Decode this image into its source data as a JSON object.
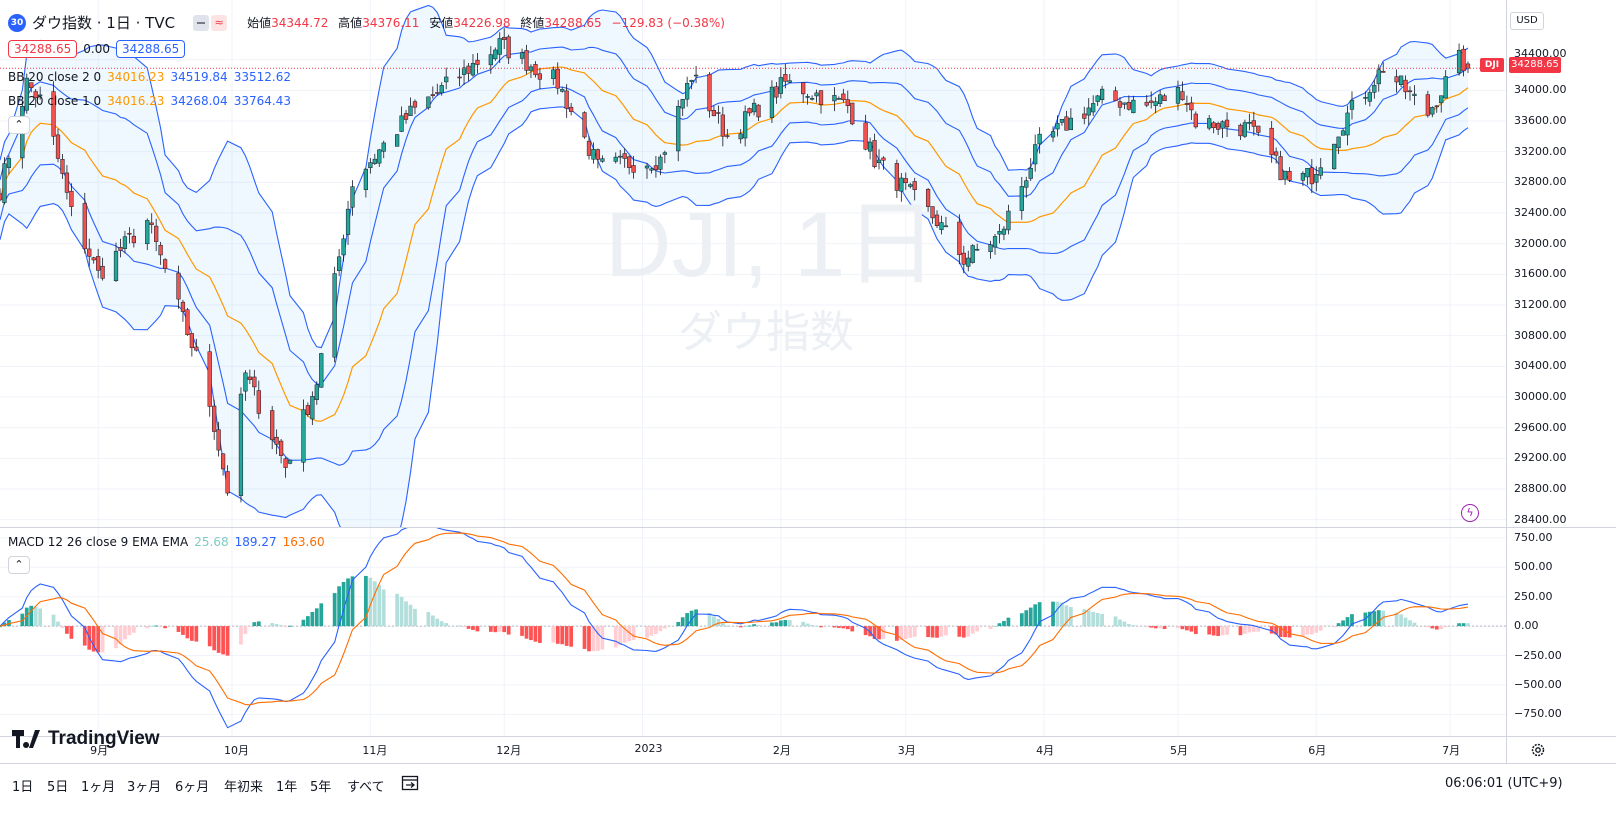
{
  "header": {
    "symbol_badge": "30",
    "title": "ダウ指数 · 1日 · TVC",
    "ohlc": [
      {
        "label": "始値",
        "value": "34344.72"
      },
      {
        "label": "高値",
        "value": "34376.11"
      },
      {
        "label": "安値",
        "value": "34226.98"
      },
      {
        "label": "終値",
        "value": "34288.65"
      }
    ],
    "change": "−129.83 (−0.38%)"
  },
  "trade": {
    "sell_price": "34288.65",
    "spread": "0.00",
    "buy_price": "34288.65"
  },
  "indicators": {
    "bb2": {
      "label": "BB 20 close 2 0",
      "basis": "34016.23",
      "upper": "34519.84",
      "lower": "33512.62"
    },
    "bb1": {
      "label": "BB 20 close 1 0",
      "basis": "34016.23",
      "upper": "34268.04",
      "lower": "33764.43"
    },
    "macd": {
      "label": "MACD 12 26 close 9 EMA EMA",
      "hist": "25.68",
      "macd": "189.27",
      "signal": "163.60"
    }
  },
  "watermark": {
    "main": "DJI, 1日",
    "sub": "ダウ指数"
  },
  "price_axis": {
    "currency": "USD",
    "ticks": [
      34400,
      34000,
      33600,
      33200,
      32800,
      32400,
      32000,
      31600,
      31200,
      30800,
      30400,
      30000,
      29600,
      29200,
      28800,
      28400
    ],
    "last_symbol": "DJI",
    "last_price": "34288.65"
  },
  "macd_axis": {
    "ticks": [
      "750.00",
      "500.00",
      "250.00",
      "0.00",
      "−250.00",
      "−500.00",
      "−750.00"
    ]
  },
  "time_axis": {
    "labels": [
      "9月",
      "10月",
      "11月",
      "12月",
      "2023",
      "2月",
      "3月",
      "4月",
      "5月",
      "6月",
      "7月"
    ]
  },
  "timeframes": [
    "1日",
    "5日",
    "1ヶ月",
    "3ヶ月",
    "6ヶ月",
    "年初来",
    "1年",
    "5年",
    "すべて"
  ],
  "clock": "06:06:01 (UTC+9)",
  "logo_text": "TradingView",
  "colors": {
    "up": "#26a69a",
    "up_body": "#4caf7d",
    "down": "#ef5350",
    "basis": "#ff9800",
    "band": "#2962ff",
    "macd_line": "#2962ff",
    "signal_line": "#ff6d00",
    "hist_up_strong": "#26a69a",
    "hist_up_weak": "#b2dfdb",
    "hist_down_strong": "#ff5252",
    "hist_down_weak": "#ffcdd2"
  },
  "chart_data": {
    "type": "candlestick",
    "x_range": [
      "2022-08-10",
      "2023-07-05"
    ],
    "ylim": [
      28200,
      34800
    ],
    "macd_ylim": [
      -900,
      800
    ],
    "anchors": [
      {
        "date": "2022-08-10",
        "close": 32700
      },
      {
        "date": "2022-08-16",
        "close": 34100
      },
      {
        "date": "2022-08-20",
        "close": 33800
      },
      {
        "date": "2022-08-26",
        "close": 32400
      },
      {
        "date": "2022-09-01",
        "close": 31600
      },
      {
        "date": "2022-09-12",
        "close": 32300
      },
      {
        "date": "2022-09-25",
        "close": 30200
      },
      {
        "date": "2022-09-30",
        "close": 28800
      },
      {
        "date": "2022-10-04",
        "close": 30300
      },
      {
        "date": "2022-10-13",
        "close": 29100
      },
      {
        "date": "2022-10-20",
        "close": 30200
      },
      {
        "date": "2022-10-28",
        "close": 32800
      },
      {
        "date": "2022-11-10",
        "close": 33700
      },
      {
        "date": "2022-11-30",
        "close": 34600
      },
      {
        "date": "2022-12-13",
        "close": 34100
      },
      {
        "date": "2022-12-22",
        "close": 33000
      },
      {
        "date": "2023-01-05",
        "close": 33100
      },
      {
        "date": "2023-01-12",
        "close": 34200
      },
      {
        "date": "2023-01-20",
        "close": 33400
      },
      {
        "date": "2023-02-02",
        "close": 34100
      },
      {
        "date": "2023-02-16",
        "close": 33800
      },
      {
        "date": "2023-02-22",
        "close": 33100
      },
      {
        "date": "2023-03-08",
        "close": 32300
      },
      {
        "date": "2023-03-14",
        "close": 31800
      },
      {
        "date": "2023-03-22",
        "close": 32100
      },
      {
        "date": "2023-03-31",
        "close": 33300
      },
      {
        "date": "2023-04-14",
        "close": 33900
      },
      {
        "date": "2023-04-24",
        "close": 33800
      },
      {
        "date": "2023-05-02",
        "close": 34000
      },
      {
        "date": "2023-05-05",
        "close": 33600
      },
      {
        "date": "2023-05-17",
        "close": 33500
      },
      {
        "date": "2023-05-26",
        "close": 32800
      },
      {
        "date": "2023-05-31",
        "close": 32900
      },
      {
        "date": "2023-06-07",
        "close": 33600
      },
      {
        "date": "2023-06-16",
        "close": 34300
      },
      {
        "date": "2023-06-26",
        "close": 33700
      },
      {
        "date": "2023-07-03",
        "close": 34400
      },
      {
        "date": "2023-07-05",
        "close": 34288.65
      }
    ],
    "last_ohlc": {
      "open": 34344.72,
      "high": 34376.11,
      "low": 34226.98,
      "close": 34288.65
    }
  }
}
